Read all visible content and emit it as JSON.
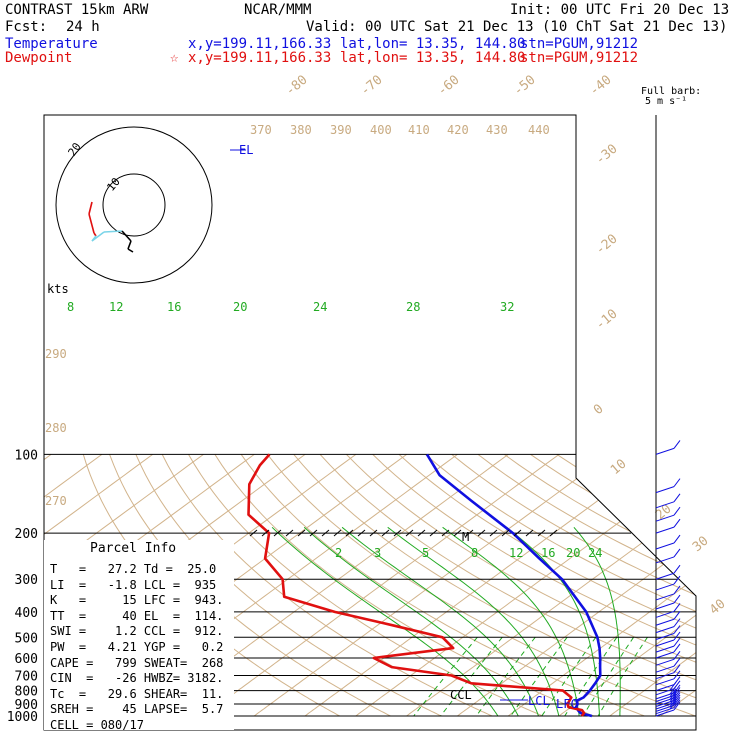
{
  "header": {
    "title": "CONTRAST 15km ARW",
    "center": "NCAR/MMM",
    "init": "Init: 00 UTC Fri 20 Dec 13",
    "fcst_label": "Fcst:",
    "fcst_value": "24 h",
    "valid": "Valid: 00 UTC Sat 21 Dec 13 (10 ChT Sat 21 Dec 13)"
  },
  "legend": {
    "temperature": {
      "label": "Temperature",
      "xy": "x,y=199.11,166.33",
      "latlon": "lat,lon= 13.35, 144.80",
      "stn": "stn=PGUM,91212",
      "color": "#1010e0"
    },
    "dewpoint": {
      "label": "Dewpoint",
      "xy": "x,y=199.11,166.33",
      "latlon": "lat,lon= 13.35, 144.80",
      "stn": "stn=PGUM,91212",
      "color": "#e01010"
    }
  },
  "barb_legend": {
    "line1": "Full barb:",
    "line2": "5 m s⁻¹"
  },
  "hodograph": {
    "kts_label": "kts",
    "ring_inner": "10",
    "ring_outer": "20"
  },
  "labels": {
    "el": "EL",
    "ccl": "CCL",
    "lcl": "LCL",
    "lfc": "LFC",
    "m": "M"
  },
  "parcel_info": {
    "title": "Parcel Info",
    "rows": [
      "T   =   27.2 Td =  25.0",
      "LI  =   -1.8 LCL =  935",
      "K   =     15 LFC =  943.",
      "TT  =     40 EL  =  114.",
      "SWI =    1.2 CCL =  912.",
      "PW  =   4.21 YGP =   0.2",
      "CAPE =   799 SWEAT=  268",
      "CIN  =   -26 HWBZ= 3182.",
      "Tc  =   29.6 SHEAR=  11.",
      "SREH =    45 LAPSE=  5.7",
      "CELL = 080/17"
    ]
  },
  "chart_data": {
    "type": "line",
    "title": "",
    "ylabel": "",
    "pressure_levels": [
      100,
      200,
      300,
      400,
      500,
      600,
      700,
      800,
      900,
      1000
    ],
    "isotherm_labels": [
      "-80",
      "-70",
      "-60",
      "-50",
      "-40",
      "-30",
      "-20",
      "-10",
      "0",
      "10",
      "20",
      "30",
      "40"
    ],
    "theta_labels": [
      "370",
      "380",
      "390",
      "400",
      "410",
      "420",
      "430",
      "440",
      "290",
      "280",
      "270"
    ],
    "theta_e_labels": [
      "8",
      "12",
      "16",
      "20",
      "24",
      "28",
      "32"
    ],
    "mixing_ratio_labels": [
      "2",
      "3",
      "5",
      "8",
      "12",
      "16",
      "20",
      "24"
    ],
    "series": [
      {
        "name": "Temperature",
        "color": "#1010e0",
        "points": [
          [
            1000,
            26.5
          ],
          [
            975,
            23.5
          ],
          [
            950,
            22.2
          ],
          [
            925,
            21.0
          ],
          [
            900,
            20.5
          ],
          [
            875,
            19.4
          ],
          [
            850,
            19.9
          ],
          [
            800,
            19.3
          ],
          [
            750,
            18.4
          ],
          [
            700,
            17.3
          ],
          [
            650,
            15.0
          ],
          [
            600,
            12.6
          ],
          [
            550,
            9.8
          ],
          [
            500,
            6.5
          ],
          [
            400,
            -2.5
          ],
          [
            300,
            -16.0
          ],
          [
            250,
            -26.0
          ],
          [
            200,
            -38.0
          ],
          [
            150,
            -55.0
          ],
          [
            120,
            -68.0
          ],
          [
            100,
            -76.0
          ]
        ]
      },
      {
        "name": "Dewpoint",
        "color": "#e01010",
        "points": [
          [
            1000,
            24.5
          ],
          [
            975,
            24.2
          ],
          [
            950,
            23.0
          ],
          [
            925,
            19.5
          ],
          [
            900,
            18.5
          ],
          [
            875,
            18.0
          ],
          [
            850,
            17.5
          ],
          [
            800,
            14.0
          ],
          [
            750,
            -6.0
          ],
          [
            700,
            -12.0
          ],
          [
            650,
            -26.0
          ],
          [
            600,
            -32.0
          ],
          [
            550,
            -19.0
          ],
          [
            500,
            -24.0
          ],
          [
            450,
            -37.0
          ],
          [
            400,
            -52.0
          ],
          [
            350,
            -66.0
          ],
          [
            300,
            -71.0
          ],
          [
            250,
            -80.0
          ],
          [
            200,
            -86.0
          ],
          [
            170,
            -95.0
          ],
          [
            130,
            -103.0
          ],
          [
            110,
            -106.0
          ],
          [
            100,
            -107.0
          ]
        ]
      }
    ],
    "barbs": [
      [
        100,
        1,
        190
      ],
      [
        140,
        1,
        180
      ],
      [
        160,
        1,
        220
      ],
      [
        180,
        1,
        230
      ],
      [
        200,
        1,
        250
      ],
      [
        230,
        1,
        230
      ],
      [
        260,
        1,
        260
      ],
      [
        300,
        1,
        255
      ],
      [
        330,
        1,
        250
      ],
      [
        360,
        1,
        250
      ],
      [
        390,
        1,
        230
      ],
      [
        420,
        1,
        200
      ],
      [
        450,
        1,
        200
      ],
      [
        480,
        1,
        210
      ],
      [
        510,
        1,
        210
      ],
      [
        540,
        1,
        200
      ],
      [
        570,
        1,
        200
      ],
      [
        600,
        1,
        220
      ],
      [
        640,
        1,
        240
      ],
      [
        680,
        1,
        250
      ],
      [
        720,
        1,
        250
      ],
      [
        760,
        1,
        260
      ],
      [
        800,
        1,
        260
      ],
      [
        830,
        2,
        270
      ],
      [
        860,
        2,
        270
      ],
      [
        880,
        2,
        275
      ],
      [
        900,
        2,
        280
      ],
      [
        920,
        2,
        280
      ],
      [
        940,
        2,
        280
      ],
      [
        960,
        2,
        275
      ],
      [
        980,
        2,
        270
      ],
      [
        1000,
        1,
        270
      ]
    ],
    "hodograph_points": [
      [
        -42,
        -3
      ],
      [
        -45,
        9
      ],
      [
        -40,
        28
      ],
      [
        -38,
        31
      ],
      [
        -42,
        36
      ],
      [
        -30,
        27
      ],
      [
        -12,
        26
      ],
      [
        -3,
        36
      ],
      [
        -6,
        44
      ],
      [
        -1,
        47
      ]
    ]
  }
}
